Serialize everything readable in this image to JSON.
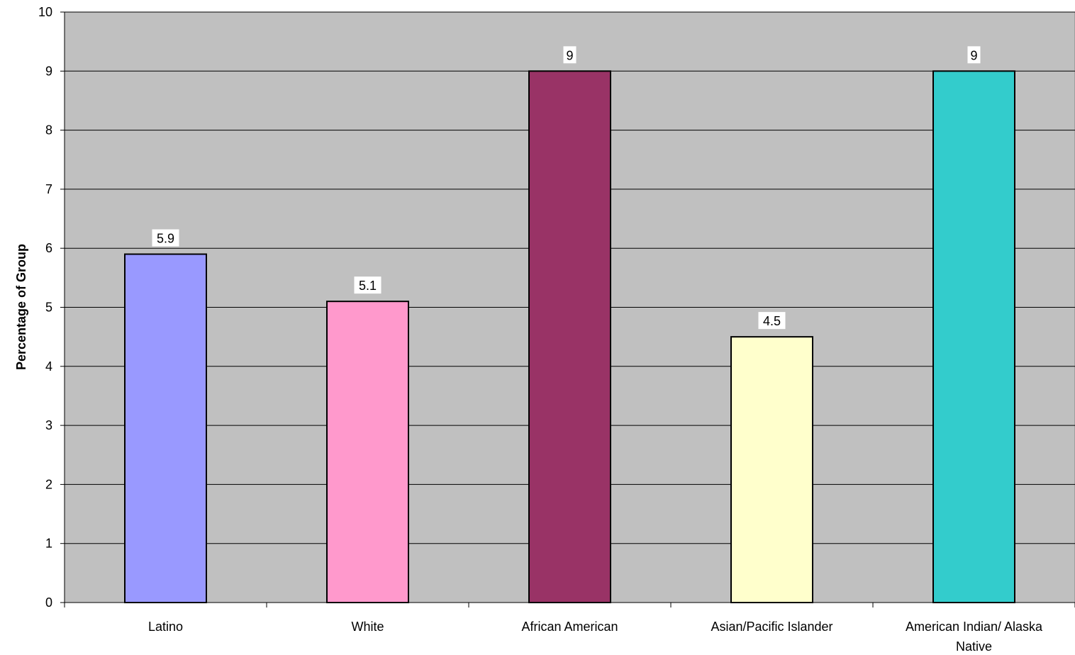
{
  "chart_data": {
    "type": "bar",
    "title": "",
    "xlabel": "",
    "ylabel": "Percentage of Group",
    "ylim": [
      0,
      10
    ],
    "yticks": [
      0,
      1,
      2,
      3,
      4,
      5,
      6,
      7,
      8,
      9,
      10
    ],
    "grid": true,
    "categories": [
      "Latino",
      "White",
      "African American",
      "Asian/Pacific Islander",
      "American Indian/ Alaska Native"
    ],
    "values": [
      5.9,
      5.1,
      9,
      4.5,
      9
    ],
    "data_labels": [
      "5.9",
      "5.1",
      "9",
      "4.5",
      "9"
    ],
    "bar_colors": [
      "#9999ff",
      "#ff99cc",
      "#993366",
      "#ffffcc",
      "#33cccc"
    ],
    "plot_background": "#c0c0c0",
    "gridline_color": "#000000"
  }
}
